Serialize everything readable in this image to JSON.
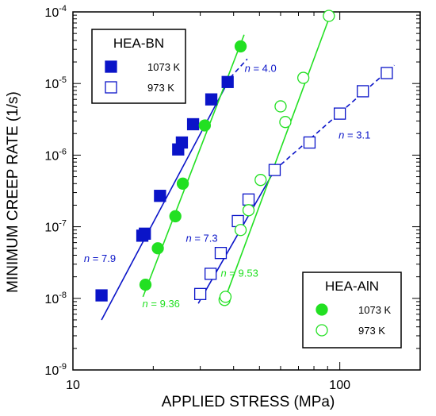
{
  "chart_data": {
    "type": "scatter",
    "xlabel": "APPLIED STRESS (MPa)",
    "ylabel": "MINIMUM CREEP RATE (1/s)",
    "xscale": "log",
    "yscale": "log",
    "xlim": [
      10,
      200
    ],
    "ylim": [
      1e-09,
      0.0001
    ],
    "x_ticks": [
      {
        "value": 10,
        "label": "10"
      },
      {
        "value": 100,
        "label": "100"
      }
    ],
    "y_ticks": [
      {
        "value": 1e-09,
        "base": "10",
        "exp": "-9"
      },
      {
        "value": 1e-08,
        "base": "10",
        "exp": "-8"
      },
      {
        "value": 1e-07,
        "base": "10",
        "exp": "-7"
      },
      {
        "value": 1e-06,
        "base": "10",
        "exp": "-6"
      },
      {
        "value": 1e-05,
        "base": "10",
        "exp": "-5"
      },
      {
        "value": 0.0001,
        "base": "10",
        "exp": "-4"
      }
    ],
    "legends": [
      {
        "title": "HEA-BN",
        "position": "top-left",
        "entries": [
          {
            "label": "1073 K",
            "series": "bn_1073"
          },
          {
            "label": "973 K",
            "series": "bn_973"
          }
        ]
      },
      {
        "title": "HEA-AlN",
        "position": "bottom-right",
        "entries": [
          {
            "label": "1073 K",
            "series": "aln_1073"
          },
          {
            "label": "973 K",
            "series": "aln_973"
          }
        ]
      }
    ],
    "series": [
      {
        "id": "bn_1073",
        "color": "#0a14c8",
        "marker": "square",
        "filled": true,
        "points": [
          [
            12.8,
            1.1e-08
          ],
          [
            18.2,
            7.5e-08
          ],
          [
            18.6,
            8e-08
          ],
          [
            21.2,
            2.7e-07
          ],
          [
            24.8,
            1.2e-06
          ],
          [
            25.6,
            1.5e-06
          ],
          [
            28.2,
            2.7e-06
          ],
          [
            33.0,
            6e-06
          ],
          [
            38.0,
            1.05e-05
          ]
        ]
      },
      {
        "id": "bn_973",
        "color": "#0a14c8",
        "marker": "square",
        "filled": false,
        "points": [
          [
            30.0,
            1.15e-08
          ],
          [
            32.8,
            2.2e-08
          ],
          [
            35.8,
            4.3e-08
          ],
          [
            41.5,
            1.2e-07
          ],
          [
            45.5,
            2.4e-07
          ],
          [
            57.0,
            6.2e-07
          ],
          [
            77.0,
            1.5e-06
          ],
          [
            100.0,
            3.8e-06
          ],
          [
            122.0,
            7.8e-06
          ],
          [
            150.0,
            1.4e-05
          ]
        ]
      },
      {
        "id": "aln_1073",
        "color": "#22e022",
        "marker": "circle",
        "filled": true,
        "points": [
          [
            18.7,
            1.55e-08
          ],
          [
            20.8,
            5e-08
          ],
          [
            24.2,
            1.4e-07
          ],
          [
            25.8,
            4e-07
          ],
          [
            31.2,
            2.6e-06
          ],
          [
            42.5,
            3.3e-05
          ]
        ]
      },
      {
        "id": "aln_973",
        "color": "#22e022",
        "marker": "circle",
        "filled": false,
        "points": [
          [
            37.0,
            9.5e-09
          ],
          [
            37.3,
            1.05e-08
          ],
          [
            42.5,
            9e-08
          ],
          [
            45.5,
            1.7e-07
          ],
          [
            50.5,
            4.5e-07
          ],
          [
            60.0,
            4.8e-06
          ],
          [
            62.5,
            2.9e-06
          ],
          [
            73.0,
            1.2e-05
          ],
          [
            91.0,
            8.8e-05
          ]
        ]
      }
    ],
    "fit_lines": [
      {
        "series": "bn_1073",
        "style": "solid",
        "color": "#0a14c8",
        "from": [
          12.8,
          5e-09
        ],
        "to": [
          38.8,
          1.2e-05
        ]
      },
      {
        "series": "bn_973",
        "style": "solid",
        "color": "#0a14c8",
        "from": [
          29.5,
          8.5e-09
        ],
        "to": [
          57.0,
          6.2e-07
        ]
      },
      {
        "series": "bn_973",
        "style": "dashed",
        "color": "#0a14c8",
        "from": [
          57.0,
          6.2e-07
        ],
        "to": [
          160.0,
          1.8e-05
        ]
      },
      {
        "series": "bn_1073",
        "style": "dashed",
        "color": "#0a14c8",
        "from": [
          38.8,
          1.2e-05
        ],
        "to": [
          45.0,
          2.2e-05
        ]
      },
      {
        "series": "aln_1073",
        "style": "solid",
        "color": "#22e022",
        "from": [
          18.3,
          1.05e-08
        ],
        "to": [
          43.8,
          4.8e-05
        ]
      },
      {
        "series": "aln_973",
        "style": "solid",
        "color": "#22e022",
        "from": [
          36.8,
          9e-09
        ],
        "to": [
          93.0,
          0.0001
        ]
      }
    ],
    "annotations": [
      {
        "italic": "n",
        "text": " = 4.0",
        "color": "#0a14c8",
        "at": [
          44.0,
          1.45e-05
        ]
      },
      {
        "italic": "n",
        "text": " = 3.1",
        "color": "#0a14c8",
        "at": [
          99.0,
          1.7e-06
        ]
      },
      {
        "italic": "n",
        "text": " = 7.9",
        "color": "#0a14c8",
        "at": [
          11.0,
          3.2e-08
        ]
      },
      {
        "italic": "n",
        "text": " = 7.3",
        "color": "#0a14c8",
        "at": [
          26.5,
          6.2e-08
        ]
      },
      {
        "italic": "n",
        "text": " = 9.53",
        "color": "#22e022",
        "at": [
          35.8,
          2e-08
        ]
      },
      {
        "italic": "n",
        "text": " = 9.36",
        "color": "#22e022",
        "at": [
          18.2,
          7.5e-09
        ]
      }
    ]
  }
}
